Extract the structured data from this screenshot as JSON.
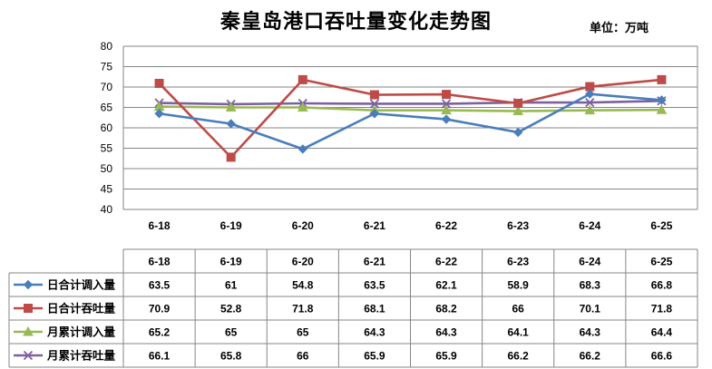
{
  "chart_data": {
    "type": "line",
    "title": "秦皇岛港口吞吐量变化走势图",
    "unit": "单位：万吨",
    "categories": [
      "6-18",
      "6-19",
      "6-20",
      "6-21",
      "6-22",
      "6-23",
      "6-24",
      "6-25"
    ],
    "ylim": [
      40,
      80
    ],
    "yticks": [
      40,
      45,
      50,
      55,
      60,
      65,
      70,
      75,
      80
    ],
    "grid": true,
    "legend": "table-below",
    "series": [
      {
        "name": "日合计调入量",
        "color": "#4a7ebb",
        "marker": "diamond",
        "values": [
          63.5,
          61,
          54.8,
          63.5,
          62.1,
          58.9,
          68.3,
          66.8
        ],
        "labels": [
          "63.5",
          "61",
          "54.8",
          "63.5",
          "62.1",
          "58.9",
          "68.3",
          "66.8"
        ]
      },
      {
        "name": "日合计吞吐量",
        "color": "#be4b48",
        "marker": "square",
        "values": [
          70.9,
          52.8,
          71.8,
          68.1,
          68.2,
          66,
          70.1,
          71.8
        ],
        "labels": [
          "70.9",
          "52.8",
          "71.8",
          "68.1",
          "68.2",
          "66",
          "70.1",
          "71.8"
        ]
      },
      {
        "name": "月累计调入量",
        "color": "#98b954",
        "marker": "triangle",
        "values": [
          65.2,
          65,
          65,
          64.3,
          64.3,
          64.1,
          64.3,
          64.4
        ],
        "labels": [
          "65.2",
          "65",
          "65",
          "64.3",
          "64.3",
          "64.1",
          "64.3",
          "64.4"
        ]
      },
      {
        "name": "月累计吞吐量",
        "color": "#7d60a0",
        "marker": "x",
        "values": [
          66.1,
          65.8,
          66,
          65.9,
          65.9,
          66.2,
          66.2,
          66.6
        ],
        "labels": [
          "66.1",
          "65.8",
          "66",
          "65.9",
          "65.9",
          "66.2",
          "66.2",
          "66.6"
        ]
      }
    ]
  }
}
